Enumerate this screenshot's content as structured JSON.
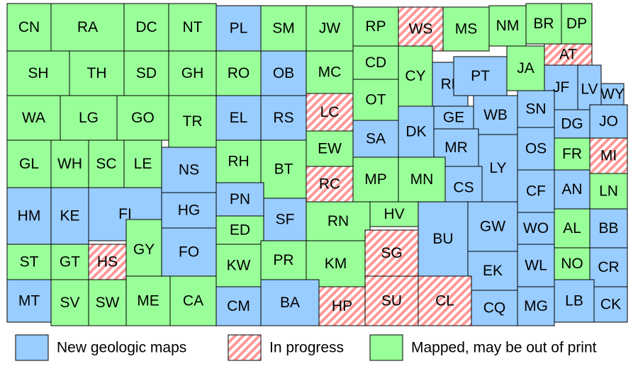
{
  "counties": [
    {
      "label": "CN",
      "category": "Mapped, may be out of print"
    },
    {
      "label": "RA",
      "category": "Mapped, may be out of print"
    },
    {
      "label": "DC",
      "category": "Mapped, may be out of print"
    },
    {
      "label": "NT",
      "category": "Mapped, may be out of print"
    },
    {
      "label": "PL",
      "category": "New geologic maps"
    },
    {
      "label": "SM",
      "category": "Mapped, may be out of print"
    },
    {
      "label": "JW",
      "category": "Mapped, may be out of print"
    },
    {
      "label": "RP",
      "category": "Mapped, may be out of print"
    },
    {
      "label": "WS",
      "category": "In progress"
    },
    {
      "label": "MS",
      "category": "Mapped, may be out of print"
    },
    {
      "label": "NM",
      "category": "Mapped, may be out of print"
    },
    {
      "label": "BR",
      "category": "Mapped, may be out of print"
    },
    {
      "label": "DP",
      "category": "Mapped, may be out of print"
    },
    {
      "label": "SH",
      "category": "Mapped, may be out of print"
    },
    {
      "label": "TH",
      "category": "Mapped, may be out of print"
    },
    {
      "label": "SD",
      "category": "Mapped, may be out of print"
    },
    {
      "label": "GH",
      "category": "Mapped, may be out of print"
    },
    {
      "label": "RO",
      "category": "Mapped, may be out of print"
    },
    {
      "label": "OB",
      "category": "New geologic maps"
    },
    {
      "label": "MC",
      "category": "Mapped, may be out of print"
    },
    {
      "label": "CD",
      "category": "Mapped, may be out of print"
    },
    {
      "label": "CY",
      "category": "Mapped, may be out of print"
    },
    {
      "label": "RL",
      "category": "New geologic maps"
    },
    {
      "label": "PT",
      "category": "New geologic maps"
    },
    {
      "label": "JA",
      "category": "Mapped, may be out of print"
    },
    {
      "label": "AT",
      "category": "In progress"
    },
    {
      "label": "JF",
      "category": "New geologic maps"
    },
    {
      "label": "LV",
      "category": "New geologic maps"
    },
    {
      "label": "WY",
      "category": "New geologic maps"
    },
    {
      "label": "WA",
      "category": "Mapped, may be out of print"
    },
    {
      "label": "LG",
      "category": "Mapped, may be out of print"
    },
    {
      "label": "GO",
      "category": "Mapped, may be out of print"
    },
    {
      "label": "TR",
      "category": "Mapped, may be out of print"
    },
    {
      "label": "EL",
      "category": "New geologic maps"
    },
    {
      "label": "RS",
      "category": "New geologic maps"
    },
    {
      "label": "LC",
      "category": "In progress"
    },
    {
      "label": "OT",
      "category": "Mapped, may be out of print"
    },
    {
      "label": "DK",
      "category": "New geologic maps"
    },
    {
      "label": "GE",
      "category": "New geologic maps"
    },
    {
      "label": "WB",
      "category": "New geologic maps"
    },
    {
      "label": "SN",
      "category": "New geologic maps"
    },
    {
      "label": "DG",
      "category": "New geologic maps"
    },
    {
      "label": "JO",
      "category": "New geologic maps"
    },
    {
      "label": "GL",
      "category": "Mapped, may be out of print"
    },
    {
      "label": "WH",
      "category": "Mapped, may be out of print"
    },
    {
      "label": "SC",
      "category": "Mapped, may be out of print"
    },
    {
      "label": "LE",
      "category": "Mapped, may be out of print"
    },
    {
      "label": "NS",
      "category": "New geologic maps"
    },
    {
      "label": "RH",
      "category": "Mapped, may be out of print"
    },
    {
      "label": "BT",
      "category": "Mapped, may be out of print"
    },
    {
      "label": "EW",
      "category": "Mapped, may be out of print"
    },
    {
      "label": "SA",
      "category": "New geologic maps"
    },
    {
      "label": "MR",
      "category": "New geologic maps"
    },
    {
      "label": "LY",
      "category": "New geologic maps"
    },
    {
      "label": "OS",
      "category": "New geologic maps"
    },
    {
      "label": "FR",
      "category": "Mapped, may be out of print"
    },
    {
      "label": "MI",
      "category": "In progress"
    },
    {
      "label": "RC",
      "category": "In progress"
    },
    {
      "label": "MP",
      "category": "Mapped, may be out of print"
    },
    {
      "label": "MN",
      "category": "Mapped, may be out of print"
    },
    {
      "label": "CS",
      "category": "New geologic maps"
    },
    {
      "label": "CF",
      "category": "New geologic maps"
    },
    {
      "label": "AN",
      "category": "New geologic maps"
    },
    {
      "label": "LN",
      "category": "Mapped, may be out of print"
    },
    {
      "label": "HM",
      "category": "New geologic maps"
    },
    {
      "label": "KE",
      "category": "New geologic maps"
    },
    {
      "label": "FI",
      "category": "New geologic maps"
    },
    {
      "label": "HG",
      "category": "New geologic maps"
    },
    {
      "label": "PN",
      "category": "New geologic maps"
    },
    {
      "label": "SF",
      "category": "New geologic maps"
    },
    {
      "label": "RN",
      "category": "Mapped, may be out of print"
    },
    {
      "label": "HV",
      "category": "Mapped, may be out of print"
    },
    {
      "label": "BU",
      "category": "New geologic maps"
    },
    {
      "label": "GW",
      "category": "New geologic maps"
    },
    {
      "label": "WO",
      "category": "New geologic maps"
    },
    {
      "label": "AL",
      "category": "Mapped, may be out of print"
    },
    {
      "label": "BB",
      "category": "New geologic maps"
    },
    {
      "label": "ED",
      "category": "Mapped, may be out of print"
    },
    {
      "label": "ST",
      "category": "Mapped, may be out of print"
    },
    {
      "label": "GT",
      "category": "Mapped, may be out of print"
    },
    {
      "label": "HS",
      "category": "In progress"
    },
    {
      "label": "GY",
      "category": "Mapped, may be out of print"
    },
    {
      "label": "FO",
      "category": "New geologic maps"
    },
    {
      "label": "KW",
      "category": "Mapped, may be out of print"
    },
    {
      "label": "PR",
      "category": "Mapped, may be out of print"
    },
    {
      "label": "KM",
      "category": "Mapped, may be out of print"
    },
    {
      "label": "SG",
      "category": "In progress"
    },
    {
      "label": "EK",
      "category": "New geologic maps"
    },
    {
      "label": "WL",
      "category": "New geologic maps"
    },
    {
      "label": "NO",
      "category": "Mapped, may be out of print"
    },
    {
      "label": "CR",
      "category": "New geologic maps"
    },
    {
      "label": "MT",
      "category": "New geologic maps"
    },
    {
      "label": "SV",
      "category": "Mapped, may be out of print"
    },
    {
      "label": "SW",
      "category": "Mapped, may be out of print"
    },
    {
      "label": "ME",
      "category": "Mapped, may be out of print"
    },
    {
      "label": "CA",
      "category": "Mapped, may be out of print"
    },
    {
      "label": "CM",
      "category": "New geologic maps"
    },
    {
      "label": "BA",
      "category": "New geologic maps"
    },
    {
      "label": "HP",
      "category": "In progress"
    },
    {
      "label": "SU",
      "category": "In progress"
    },
    {
      "label": "CL",
      "category": "In progress"
    },
    {
      "label": "CQ",
      "category": "New geologic maps"
    },
    {
      "label": "MG",
      "category": "New geologic maps"
    },
    {
      "label": "LB",
      "category": "New geologic maps"
    },
    {
      "label": "CK",
      "category": "New geologic maps"
    }
  ],
  "legend": [
    {
      "label": "New geologic maps",
      "color": "#99ccff"
    },
    {
      "label": "In progress",
      "color": "#ff9999",
      "hatch": true
    },
    {
      "label": "Mapped, may be out of print",
      "color": "#99ff99"
    }
  ]
}
